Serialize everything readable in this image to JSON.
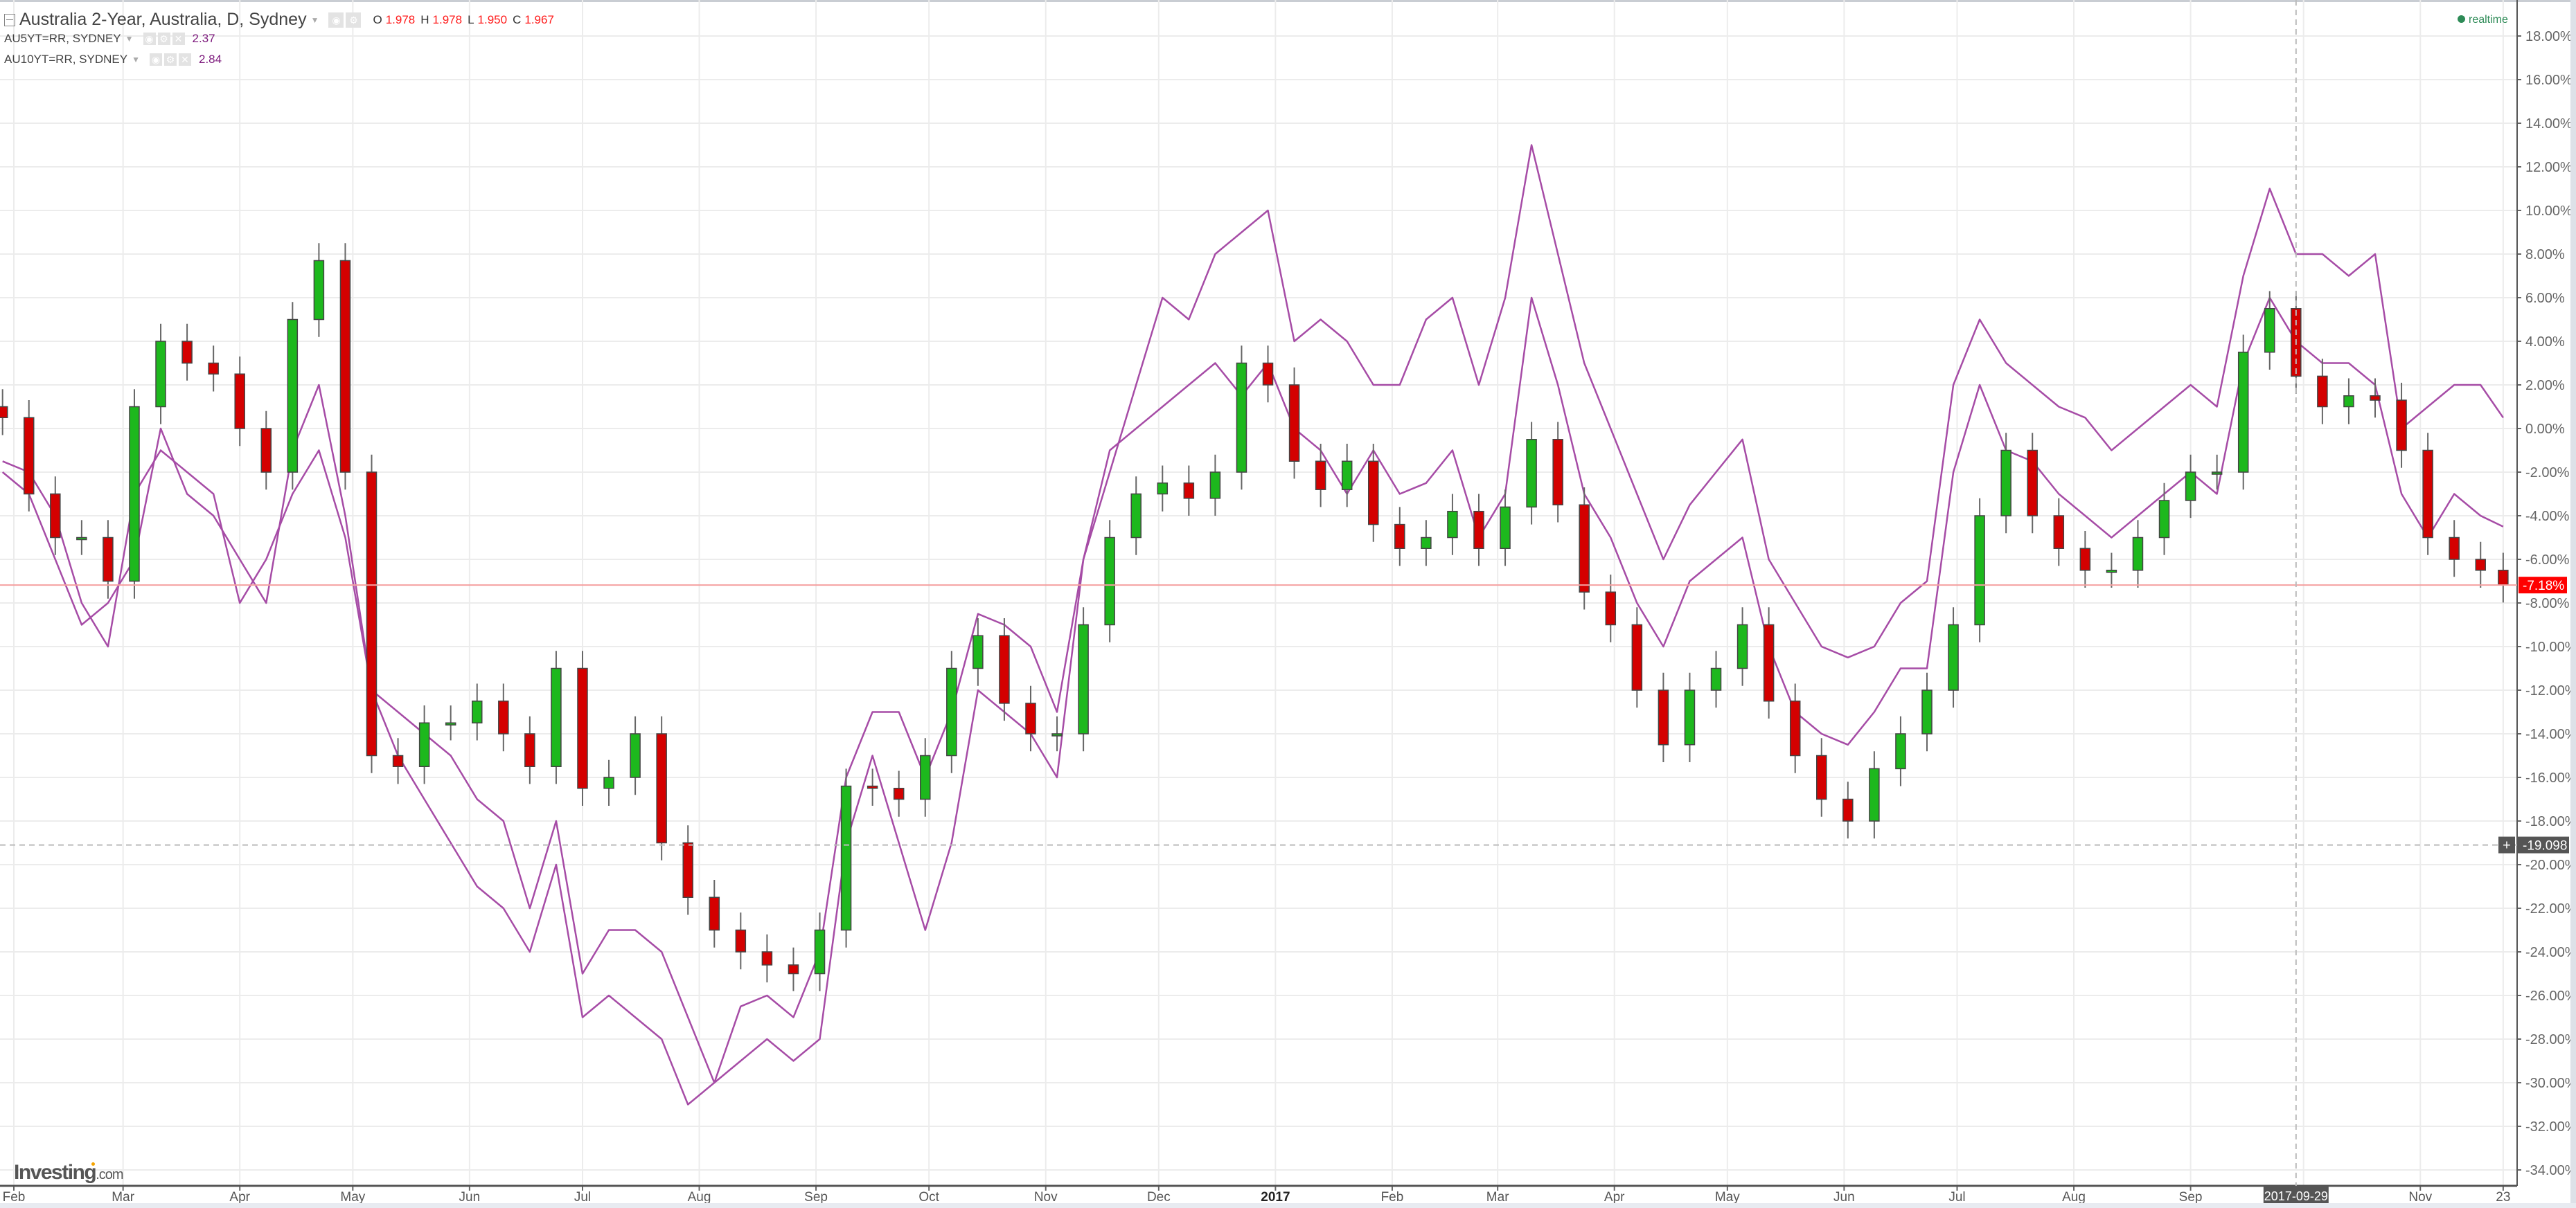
{
  "header": {
    "title": "Australia 2-Year, Australia, D, Sydney",
    "ohlc": {
      "o_label": "O",
      "o": "1.978",
      "h_label": "H",
      "h": "1.978",
      "l_label": "L",
      "l": "1.950",
      "c_label": "C",
      "c": "1.967"
    },
    "overlays": [
      {
        "name": "AU5YT=RR, SYDNEY",
        "value": "2.37"
      },
      {
        "name": "AU10YT=RR, SYDNEY",
        "value": "2.84"
      }
    ],
    "realtime": "realtime"
  },
  "logo": {
    "main": "Investing",
    "suffix": ".com"
  },
  "colors": {
    "up": "#1db81d",
    "down": "#d40000",
    "line": "#a64ca6",
    "price_tag": "#ff0000",
    "crosshair_tag": "#555555",
    "realtime": "#2e8b57"
  },
  "chart_data": {
    "type": "candlestick+line",
    "y_axis": {
      "min": -35,
      "max": 19,
      "ticks": [
        18,
        16,
        14,
        12,
        10,
        8,
        6,
        4,
        2,
        0,
        -2,
        -4,
        -6,
        -8,
        -10,
        -12,
        -14,
        -16,
        -18,
        -20,
        -22,
        -24,
        -26,
        -28,
        -30,
        -32,
        -34
      ],
      "format": "percent",
      "position": "right"
    },
    "x_axis": {
      "ticks": [
        {
          "label": "Feb",
          "date": "2016-02-01"
        },
        {
          "label": "Mar",
          "date": "2016-03-01"
        },
        {
          "label": "Apr",
          "date": "2016-04-01"
        },
        {
          "label": "May",
          "date": "2016-05-01"
        },
        {
          "label": "Jun",
          "date": "2016-06-01"
        },
        {
          "label": "Jul",
          "date": "2016-07-01"
        },
        {
          "label": "Aug",
          "date": "2016-08-01"
        },
        {
          "label": "Sep",
          "date": "2016-09-01"
        },
        {
          "label": "Oct",
          "date": "2016-10-01"
        },
        {
          "label": "Nov",
          "date": "2016-11-01"
        },
        {
          "label": "Dec",
          "date": "2016-12-01"
        },
        {
          "label": "2017",
          "date": "2017-01-01",
          "bold": true
        },
        {
          "label": "Feb",
          "date": "2017-02-01"
        },
        {
          "label": "Mar",
          "date": "2017-03-01"
        },
        {
          "label": "Apr",
          "date": "2017-04-01"
        },
        {
          "label": "May",
          "date": "2017-05-01"
        },
        {
          "label": "Jun",
          "date": "2017-06-01"
        },
        {
          "label": "Jul",
          "date": "2017-07-01"
        },
        {
          "label": "Aug",
          "date": "2017-08-01"
        },
        {
          "label": "Sep",
          "date": "2017-09-01"
        },
        {
          "label": "Nov",
          "date": "2017-11-01"
        },
        {
          "label": "23",
          "date": "2017-11-23"
        }
      ],
      "grid_only": [
        "2017-10-01"
      ]
    },
    "grid": true,
    "last_price": {
      "value": -7.18,
      "label": "-7.18%"
    },
    "crosshair": {
      "date": "2017-09-29",
      "date_label": "2017-09-29",
      "value": -19.098,
      "value_label": "-19.098"
    },
    "dates": [
      "2016-01-29",
      "2016-02-05",
      "2016-02-12",
      "2016-02-19",
      "2016-02-26",
      "2016-03-04",
      "2016-03-11",
      "2016-03-18",
      "2016-03-25",
      "2016-04-01",
      "2016-04-08",
      "2016-04-15",
      "2016-04-22",
      "2016-04-29",
      "2016-05-06",
      "2016-05-13",
      "2016-05-20",
      "2016-05-27",
      "2016-06-03",
      "2016-06-10",
      "2016-06-17",
      "2016-06-24",
      "2016-07-01",
      "2016-07-08",
      "2016-07-15",
      "2016-07-22",
      "2016-07-29",
      "2016-08-05",
      "2016-08-12",
      "2016-08-19",
      "2016-08-26",
      "2016-09-02",
      "2016-09-09",
      "2016-09-16",
      "2016-09-23",
      "2016-09-30",
      "2016-10-07",
      "2016-10-14",
      "2016-10-21",
      "2016-10-28",
      "2016-11-04",
      "2016-11-11",
      "2016-11-18",
      "2016-11-25",
      "2016-12-02",
      "2016-12-09",
      "2016-12-16",
      "2016-12-23",
      "2016-12-30",
      "2017-01-06",
      "2017-01-13",
      "2017-01-20",
      "2017-01-27",
      "2017-02-03",
      "2017-02-10",
      "2017-02-17",
      "2017-02-24",
      "2017-03-03",
      "2017-03-10",
      "2017-03-17",
      "2017-03-24",
      "2017-03-31",
      "2017-04-07",
      "2017-04-14",
      "2017-04-21",
      "2017-04-28",
      "2017-05-05",
      "2017-05-12",
      "2017-05-19",
      "2017-05-26",
      "2017-06-02",
      "2017-06-09",
      "2017-06-16",
      "2017-06-23",
      "2017-06-30",
      "2017-07-07",
      "2017-07-14",
      "2017-07-21",
      "2017-07-28",
      "2017-08-04",
      "2017-08-11",
      "2017-08-18",
      "2017-08-25",
      "2017-09-01",
      "2017-09-08",
      "2017-09-15",
      "2017-09-22",
      "2017-09-29",
      "2017-10-06",
      "2017-10-13",
      "2017-10-20",
      "2017-10-27",
      "2017-11-03",
      "2017-11-10",
      "2017-11-17",
      "2017-11-23"
    ],
    "series": [
      {
        "name": "Australia 2-Year",
        "kind": "candles",
        "close": [
          0.5,
          -3,
          -5,
          -5,
          -7,
          1,
          4,
          3,
          2.5,
          0,
          -2,
          5,
          7.7,
          -2,
          -15,
          -15.5,
          -13.5,
          -13.5,
          -12.5,
          -14,
          -15.5,
          -11,
          -16.5,
          -16,
          -14,
          -19,
          -21.5,
          -23,
          -24,
          -24.6,
          -25,
          -23,
          -16.4,
          -16.5,
          -17,
          -15,
          -11,
          -9.5,
          -12.6,
          -14,
          -14,
          -9,
          -5,
          -3,
          -2.5,
          -3.2,
          -2,
          3,
          2,
          -1.5,
          -2.8,
          -1.5,
          -4.4,
          -5.5,
          -5,
          -3.8,
          -5.5,
          -3.6,
          -0.5,
          -3.5,
          -7.5,
          -9,
          -12,
          -14.5,
          -12,
          -11,
          -9,
          -12.5,
          -15,
          -17,
          -18,
          -15.6,
          -14,
          -12,
          -9,
          -4,
          -1,
          -4,
          -5.5,
          -6.5,
          -6.5,
          -5,
          -3.3,
          -2,
          -2,
          3.5,
          5.5,
          2.4,
          1,
          1.5,
          1.3,
          -1,
          -5,
          -6,
          -6.5,
          -7.18
        ]
      },
      {
        "name": "AU5YT=RR, SYDNEY",
        "kind": "line",
        "values": [
          -1.5,
          -2,
          -4,
          -8,
          -10,
          -3,
          -1,
          -2,
          -3,
          -8,
          -6,
          -3,
          -1,
          -5,
          -12,
          -13,
          -14,
          -15,
          -17,
          -18,
          -22,
          -18,
          -25,
          -23,
          -23,
          -24,
          -27,
          -30,
          -26.5,
          -26,
          -27,
          -24,
          -16,
          -13,
          -13,
          -16,
          -13,
          -8.5,
          -9,
          -10,
          -13,
          -6,
          -2,
          2,
          6,
          5,
          8,
          9,
          10,
          4,
          5,
          4,
          2,
          2,
          5,
          6,
          2,
          6,
          13,
          8,
          3,
          0,
          -3,
          -6,
          -3.5,
          -2,
          -0.5,
          -6,
          -8,
          -10,
          -10.5,
          -10,
          -8,
          -7,
          2,
          5,
          3,
          2,
          1,
          0.5,
          -1,
          0,
          1,
          2,
          1,
          7,
          11,
          8,
          8,
          7,
          8,
          0,
          1,
          2,
          2,
          0.5
        ]
      },
      {
        "name": "AU10YT=RR, SYDNEY",
        "kind": "line",
        "values": [
          -2,
          -3,
          -6,
          -9,
          -8,
          -6,
          0,
          -3,
          -4,
          -6,
          -8,
          -1,
          2,
          -4,
          -12,
          -15,
          -17,
          -19,
          -21,
          -22,
          -24,
          -20,
          -27,
          -26,
          -27,
          -28,
          -31,
          -30,
          -29,
          -28,
          -29,
          -28,
          -19,
          -15,
          -19,
          -23,
          -19,
          -12,
          -13,
          -14,
          -16,
          -6,
          -1,
          0,
          1,
          2,
          3,
          1.5,
          3,
          0,
          -1,
          -3,
          -1,
          -3,
          -2.5,
          -1,
          -5,
          -3,
          6,
          2,
          -3,
          -5,
          -8,
          -10,
          -7,
          -6,
          -5,
          -10,
          -13,
          -14,
          -14.5,
          -13,
          -11,
          -11,
          -2,
          2,
          -1,
          -1.5,
          -3,
          -4,
          -5,
          -4,
          -3,
          -2,
          -3,
          3,
          6,
          4,
          3,
          3,
          2,
          -3,
          -5,
          -3,
          -4,
          -4.5
        ]
      }
    ]
  }
}
